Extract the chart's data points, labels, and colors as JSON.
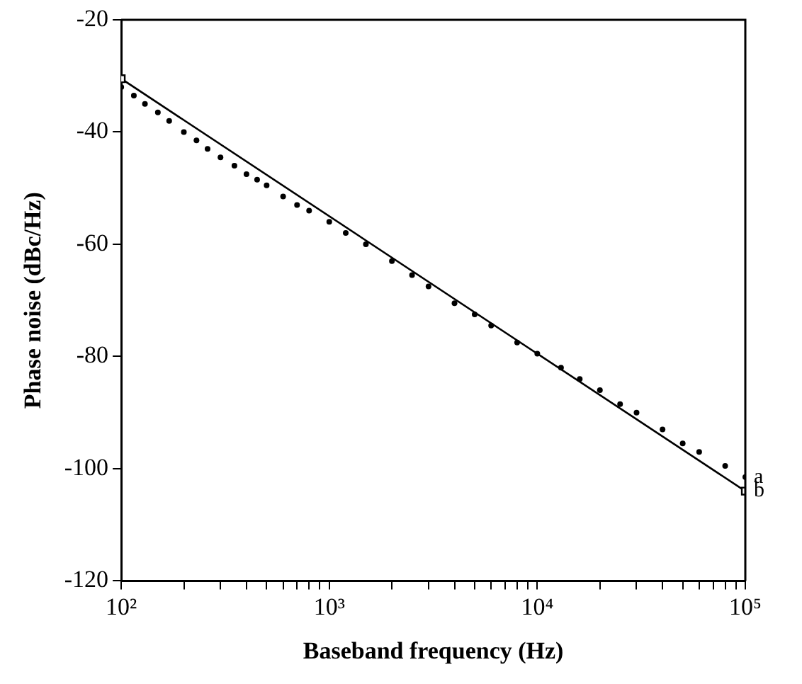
{
  "chart_data": {
    "type": "scatter",
    "xlabel": "Baseband frequency (Hz)",
    "ylabel": "Phase noise (dBc/Hz)",
    "log": "x",
    "grid": false,
    "legend": false,
    "xlim": [
      100,
      100000
    ],
    "ylim": [
      -120,
      -20
    ],
    "xticks": [
      {
        "value": 100,
        "label": "10²"
      },
      {
        "value": 200,
        "label": null
      },
      {
        "value": 300,
        "label": null
      },
      {
        "value": 400,
        "label": null
      },
      {
        "value": 500,
        "label": null
      },
      {
        "value": 600,
        "label": null
      },
      {
        "value": 700,
        "label": null
      },
      {
        "value": 800,
        "label": null
      },
      {
        "value": 900,
        "label": null
      },
      {
        "value": 1000,
        "label": "10³"
      },
      {
        "value": 2000,
        "label": null
      },
      {
        "value": 3000,
        "label": null
      },
      {
        "value": 4000,
        "label": null
      },
      {
        "value": 5000,
        "label": null
      },
      {
        "value": 6000,
        "label": null
      },
      {
        "value": 7000,
        "label": null
      },
      {
        "value": 8000,
        "label": null
      },
      {
        "value": 9000,
        "label": null
      },
      {
        "value": 10000,
        "label": "10⁴"
      },
      {
        "value": 20000,
        "label": null
      },
      {
        "value": 30000,
        "label": null
      },
      {
        "value": 40000,
        "label": null
      },
      {
        "value": 50000,
        "label": null
      },
      {
        "value": 60000,
        "label": null
      },
      {
        "value": 70000,
        "label": null
      },
      {
        "value": 80000,
        "label": null
      },
      {
        "value": 90000,
        "label": null
      },
      {
        "value": 100000,
        "label": "10⁵"
      }
    ],
    "yticks": [
      -120,
      -100,
      -80,
      -60,
      -40,
      -20
    ],
    "series": [
      {
        "name": "a",
        "marker": "circle",
        "color": "#000000",
        "x": [
          100,
          115,
          130,
          150,
          170,
          200,
          230,
          260,
          300,
          350,
          400,
          450,
          500,
          600,
          700,
          800,
          1000,
          1200,
          1500,
          2000,
          2500,
          3000,
          4000,
          5000,
          6000,
          8000,
          10000,
          13000,
          16000,
          20000,
          25000,
          30000,
          40000,
          50000,
          60000,
          80000,
          100000
        ],
        "values": [
          -32,
          -33.5,
          -35,
          -36.5,
          -38,
          -40,
          -41.5,
          -43,
          -44.5,
          -46,
          -47.5,
          -48.5,
          -49.5,
          -51.5,
          -53,
          -54,
          -56,
          -58,
          -60,
          -63,
          -65.5,
          -67.5,
          -70.5,
          -72.5,
          -74.5,
          -77.5,
          -79.5,
          -82,
          -84,
          -86,
          -88.5,
          -90,
          -93,
          -95.5,
          -97,
          -99.5,
          -101.5
        ]
      },
      {
        "name": "b",
        "type": "line",
        "marker": "square",
        "color": "#000000",
        "x": [
          100,
          100000
        ],
        "values": [
          -30.5,
          -104
        ]
      }
    ]
  }
}
